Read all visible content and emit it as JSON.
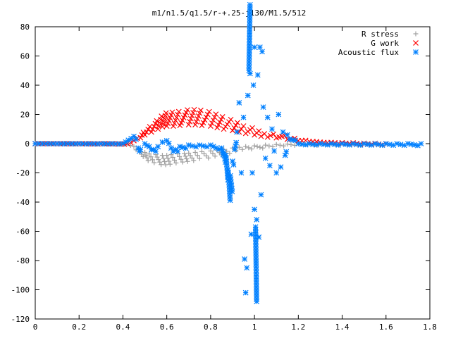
{
  "chart_data": {
    "type": "scatter",
    "title": "m1/n1.5/q1.5/r-+.25-j130/M1.5/512",
    "xlabel": "",
    "ylabel": "",
    "xlim": [
      0,
      1.8
    ],
    "ylim": [
      -120,
      80
    ],
    "xticks": [
      "0",
      "0.2",
      "0.4",
      "0.6",
      "0.8",
      "1",
      "1.2",
      "1.4",
      "1.6",
      "1.8"
    ],
    "yticks": [
      "80",
      "60",
      "40",
      "20",
      "0",
      "-20",
      "-40",
      "-60",
      "-80",
      "-100",
      "-120"
    ],
    "grid": false,
    "legend_position": "top-right",
    "series": [
      {
        "name": "R stress",
        "marker": "plus",
        "color": "#a0a0a0",
        "points": [
          [
            0.0,
            0
          ],
          [
            0.1,
            0
          ],
          [
            0.2,
            0
          ],
          [
            0.3,
            0
          ],
          [
            0.42,
            0
          ],
          [
            0.45,
            -2
          ],
          [
            0.47,
            -4
          ],
          [
            0.5,
            -6
          ],
          [
            0.52,
            -7
          ],
          [
            0.55,
            -7.5
          ],
          [
            0.58,
            -8
          ],
          [
            0.6,
            -8
          ],
          [
            0.62,
            -7.5
          ],
          [
            0.65,
            -7
          ],
          [
            0.68,
            -6.8
          ],
          [
            0.7,
            -6.5
          ],
          [
            0.73,
            -6
          ],
          [
            0.76,
            -5.5
          ],
          [
            0.8,
            -5
          ],
          [
            0.83,
            -4.5
          ],
          [
            0.86,
            -4
          ],
          [
            0.9,
            -3
          ],
          [
            0.93,
            -2.5
          ],
          [
            0.96,
            -2
          ],
          [
            1.0,
            -1.5
          ],
          [
            1.05,
            -1
          ],
          [
            1.1,
            -0.6
          ],
          [
            1.15,
            -0.3
          ],
          [
            1.2,
            -0.1
          ],
          [
            1.3,
            0
          ],
          [
            1.4,
            0
          ],
          [
            1.5,
            0
          ],
          [
            1.6,
            0
          ]
        ]
      },
      {
        "name": "G work",
        "marker": "cross",
        "color": "#ff0000",
        "points": [
          [
            0.0,
            0
          ],
          [
            0.1,
            0
          ],
          [
            0.2,
            0
          ],
          [
            0.3,
            0
          ],
          [
            0.42,
            0
          ],
          [
            0.45,
            2
          ],
          [
            0.48,
            4
          ],
          [
            0.5,
            6
          ],
          [
            0.53,
            8
          ],
          [
            0.56,
            10
          ],
          [
            0.58,
            11.5
          ],
          [
            0.6,
            12
          ],
          [
            0.63,
            12
          ],
          [
            0.66,
            12.5
          ],
          [
            0.7,
            13
          ],
          [
            0.73,
            13
          ],
          [
            0.76,
            12.5
          ],
          [
            0.8,
            12
          ],
          [
            0.83,
            11
          ],
          [
            0.86,
            10
          ],
          [
            0.9,
            9
          ],
          [
            0.93,
            8
          ],
          [
            0.96,
            7
          ],
          [
            1.0,
            6
          ],
          [
            1.03,
            5
          ],
          [
            1.06,
            4.5
          ],
          [
            1.1,
            4
          ],
          [
            1.15,
            3
          ],
          [
            1.2,
            2
          ],
          [
            1.25,
            1.5
          ],
          [
            1.3,
            1
          ],
          [
            1.35,
            0.8
          ],
          [
            1.4,
            0.6
          ],
          [
            1.45,
            0.5
          ],
          [
            1.5,
            0.3
          ],
          [
            1.55,
            0.2
          ],
          [
            1.6,
            0
          ]
        ]
      },
      {
        "name": "Acoustic flux",
        "marker": "star",
        "color": "#0080ff",
        "points": [
          [
            0.0,
            0
          ],
          [
            0.05,
            0
          ],
          [
            0.1,
            0
          ],
          [
            0.15,
            0
          ],
          [
            0.2,
            0
          ],
          [
            0.25,
            0
          ],
          [
            0.3,
            0
          ],
          [
            0.35,
            0
          ],
          [
            0.4,
            0
          ],
          [
            0.45,
            5
          ],
          [
            0.46,
            3
          ],
          [
            0.47,
            -3
          ],
          [
            0.48,
            -4
          ],
          [
            0.5,
            0
          ],
          [
            0.52,
            -2
          ],
          [
            0.54,
            -4
          ],
          [
            0.56,
            -2
          ],
          [
            0.58,
            1
          ],
          [
            0.6,
            2
          ],
          [
            0.62,
            -3
          ],
          [
            0.64,
            -4
          ],
          [
            0.66,
            -2
          ],
          [
            0.7,
            -1
          ],
          [
            0.75,
            -1
          ],
          [
            0.8,
            -1
          ],
          [
            0.85,
            -3
          ],
          [
            0.86,
            -6
          ],
          [
            0.87,
            -8
          ],
          [
            0.88,
            -18
          ],
          [
            0.89,
            -22
          ],
          [
            0.9,
            -12
          ],
          [
            0.91,
            -4
          ],
          [
            0.92,
            8
          ],
          [
            0.93,
            28
          ],
          [
            0.94,
            -20
          ],
          [
            0.95,
            18
          ],
          [
            0.955,
            -79
          ],
          [
            0.96,
            -102
          ],
          [
            0.965,
            -85
          ],
          [
            0.97,
            33
          ],
          [
            0.975,
            50
          ],
          [
            0.98,
            48
          ],
          [
            0.985,
            -62
          ],
          [
            0.99,
            -20
          ],
          [
            0.995,
            40
          ],
          [
            1.0,
            -45
          ],
          [
            1.0,
            66
          ],
          [
            1.005,
            -57
          ],
          [
            1.01,
            -52
          ],
          [
            1.015,
            47
          ],
          [
            1.02,
            -64
          ],
          [
            1.025,
            66
          ],
          [
            1.03,
            -35
          ],
          [
            1.035,
            63
          ],
          [
            1.04,
            25
          ],
          [
            1.05,
            -10
          ],
          [
            1.06,
            18
          ],
          [
            1.07,
            -15
          ],
          [
            1.08,
            10
          ],
          [
            1.09,
            -5
          ],
          [
            1.1,
            -20
          ],
          [
            1.11,
            20
          ],
          [
            1.12,
            -16
          ],
          [
            1.13,
            8
          ],
          [
            1.14,
            -8
          ],
          [
            1.15,
            6
          ],
          [
            1.16,
            3
          ],
          [
            1.2,
            0
          ],
          [
            1.25,
            0
          ],
          [
            1.3,
            0
          ],
          [
            1.35,
            0
          ],
          [
            1.4,
            0
          ],
          [
            1.45,
            0
          ],
          [
            1.5,
            0
          ],
          [
            1.55,
            0
          ],
          [
            1.6,
            0
          ],
          [
            1.65,
            0
          ],
          [
            1.7,
            0
          ],
          [
            1.76,
            0
          ]
        ]
      }
    ]
  }
}
